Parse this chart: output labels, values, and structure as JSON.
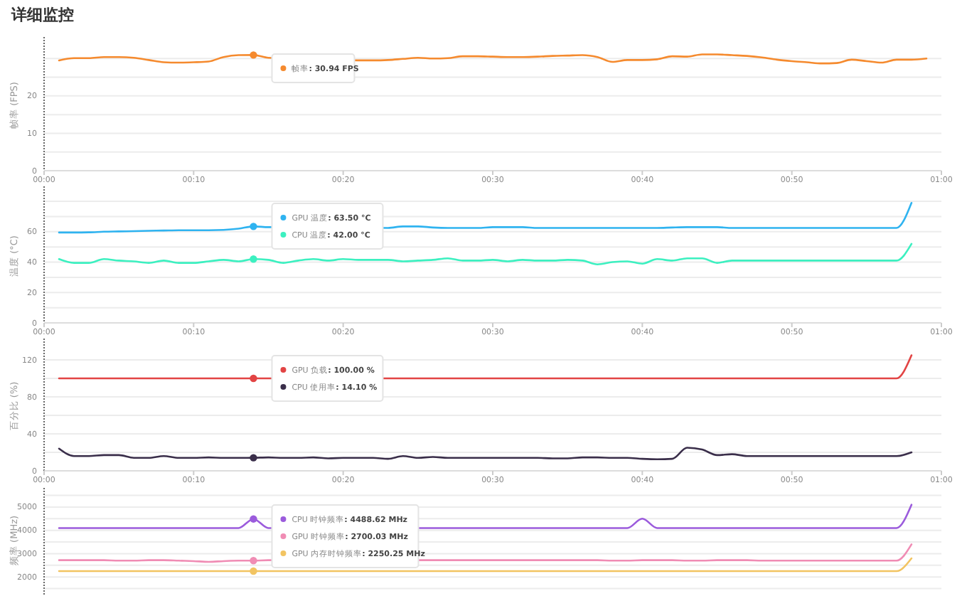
{
  "chart_data": [
    {
      "type": "line",
      "title": "详细监控",
      "ylabel": "帧率 (FPS)",
      "legend": "top",
      "annotations": [
        ": 30.94 FPS"
      ],
      "xlim": [
        0,
        60
      ],
      "xticks": [
        {
          "value": 0,
          "label": "00:00"
        },
        {
          "value": 10,
          "label": "00:10"
        },
        {
          "value": 20,
          "label": "00:20"
        },
        {
          "value": 30,
          "label": "00:30"
        },
        {
          "value": 40,
          "label": "00:40"
        },
        {
          "value": 50,
          "label": "00:50"
        },
        {
          "value": 60,
          "label": "01:00"
        }
      ],
      "ylim": [
        0,
        35
      ],
      "yticks": [
        0,
        {
          "value": 5,
          "label": null
        },
        10,
        {
          "value": 15,
          "label": null
        },
        20,
        {
          "value": 25,
          "label": null
        },
        {
          "value": 30,
          "label": null
        }
      ],
      "grid": "y",
      "x": [
        1,
        2,
        3,
        4,
        5,
        6,
        7,
        8,
        9,
        10,
        11,
        12,
        13,
        14,
        15,
        21,
        22,
        23,
        24,
        25,
        26,
        27,
        28,
        29,
        30,
        31,
        32,
        33,
        34,
        35,
        36,
        37,
        38,
        39,
        40,
        41,
        42,
        43,
        44,
        45,
        46,
        47,
        48,
        49,
        50,
        51,
        52,
        53,
        54,
        55,
        56,
        57,
        58,
        59
      ],
      "series": [
        {
          "name": "帧率",
          "color": "#f58a2e",
          "values": [
            29.5,
            30.1,
            30.1,
            30.4,
            30.4,
            30.2,
            29.6,
            29.0,
            28.9,
            29.0,
            29.2,
            30.4,
            30.9,
            30.94,
            30.2,
            29.5,
            29.5,
            29.6,
            29.9,
            30.2,
            30.0,
            30.1,
            30.6,
            30.6,
            30.5,
            30.4,
            30.4,
            30.5,
            30.7,
            30.8,
            30.9,
            30.4,
            29.1,
            29.6,
            29.6,
            29.8,
            30.6,
            30.5,
            31.1,
            31.1,
            30.9,
            30.7,
            30.3,
            29.7,
            29.3,
            29.0,
            28.7,
            28.8,
            29.7,
            29.3,
            28.9,
            29.7,
            29.7,
            30.0
          ]
        },
        {
          "type": "scatter",
          "color": "#f58a2e",
          "x": [
            14
          ],
          "values": [
            30.94
          ]
        }
      ]
    },
    {
      "type": "line",
      "ylabel": "温度 (°C)",
      "legend": "top",
      "annotations": [
        ": 63.50 °C",
        ": 42.00 °C"
      ],
      "xlim": [
        0,
        60
      ],
      "xticks": [
        {
          "value": 0,
          "label": "00:00"
        },
        {
          "value": 10,
          "label": "00:10"
        },
        {
          "value": 20,
          "label": "00:20"
        },
        {
          "value": 30,
          "label": "00:30"
        },
        {
          "value": 40,
          "label": "00:40"
        },
        {
          "value": 50,
          "label": "00:50"
        },
        {
          "value": 60,
          "label": "01:00"
        }
      ],
      "ylim": [
        0,
        88
      ],
      "yticks": [
        0,
        {
          "value": 10,
          "label": null
        },
        20,
        {
          "value": 30,
          "label": null
        },
        40,
        {
          "value": 50,
          "label": null
        },
        60,
        {
          "value": 70,
          "label": null
        },
        {
          "value": 80,
          "label": null
        }
      ],
      "grid": "y",
      "x": [
        1,
        2,
        3,
        4,
        5,
        6,
        7,
        8,
        9,
        10,
        11,
        12,
        13,
        14,
        15,
        16,
        17,
        18,
        19,
        20,
        21,
        22,
        23,
        24,
        25,
        26,
        27,
        28,
        29,
        30,
        31,
        32,
        33,
        34,
        35,
        36,
        37,
        38,
        39,
        40,
        41,
        42,
        43,
        44,
        45,
        46,
        47,
        48,
        49,
        50,
        51,
        52,
        53,
        54,
        55,
        56,
        57,
        58
      ],
      "series": [
        {
          "name": "GPU 温度",
          "color": "#2fb3f0",
          "x": [
            1,
            2,
            3,
            4,
            5,
            6,
            7,
            8,
            9,
            10,
            11,
            12,
            13,
            14,
            15,
            23,
            24,
            25,
            26,
            27,
            28,
            29,
            30,
            31,
            32,
            33,
            34,
            35,
            36,
            37,
            38,
            39,
            40,
            41,
            42,
            43,
            44,
            45,
            46,
            47,
            48,
            49,
            50,
            51,
            52,
            53,
            54,
            55,
            56,
            57,
            58
          ],
          "values": [
            59.5,
            59.5,
            59.6,
            60,
            60.2,
            60.4,
            60.6,
            60.8,
            61,
            61,
            61,
            61.2,
            62,
            63.5,
            63,
            62.5,
            63.5,
            63.5,
            62.8,
            62.5,
            62.5,
            62.5,
            63,
            63,
            63,
            62.5,
            62.5,
            62.5,
            62.5,
            62.5,
            62.5,
            62.5,
            62.5,
            62.5,
            62.8,
            63,
            63,
            63,
            62.5,
            62.5,
            62.5,
            62.5,
            62.5,
            62.5,
            62.5,
            62.5,
            62.5,
            62.5,
            62.5,
            62.5,
            79
          ]
        },
        {
          "name": "CPU 温度",
          "color": "#3cf0c0",
          "values": [
            42,
            39.5,
            39.5,
            42,
            41,
            40.5,
            39.5,
            41,
            39.5,
            39.5,
            40.5,
            41.5,
            40.5,
            42,
            41.5,
            39.5,
            41,
            42,
            41,
            42,
            41.5,
            41.5,
            41.5,
            40.5,
            41,
            41.5,
            42.5,
            41,
            41,
            41.5,
            40.5,
            41.5,
            41,
            41,
            41.5,
            41,
            38.5,
            40,
            40.5,
            39,
            42,
            41,
            42.5,
            42.5,
            39.5,
            41,
            41,
            41,
            41,
            41,
            41,
            41,
            41,
            41,
            41,
            41,
            41,
            52
          ]
        },
        {
          "type": "scatter",
          "color": "#2fb3f0",
          "x": [
            14
          ],
          "values": [
            63.5
          ]
        },
        {
          "type": "scatter",
          "color": "#3cf0c0",
          "x": [
            14
          ],
          "values": [
            42
          ]
        }
      ]
    },
    {
      "type": "line",
      "ylabel": "百分比 (%)",
      "legend": "top",
      "annotations": [
        ": 100.00 %",
        ": 14.10 %"
      ],
      "xlim": [
        0,
        60
      ],
      "xticks": [
        {
          "value": 0,
          "label": "00:00"
        },
        {
          "value": 10,
          "label": "00:10"
        },
        {
          "value": 20,
          "label": "00:20"
        },
        {
          "value": 30,
          "label": "00:30"
        },
        {
          "value": 40,
          "label": "00:40"
        },
        {
          "value": 50,
          "label": "00:50"
        },
        {
          "value": 60,
          "label": "01:00"
        }
      ],
      "ylim": [
        0,
        140
      ],
      "yticks": [
        0,
        {
          "value": 20,
          "label": null
        },
        40,
        {
          "value": 60,
          "label": null
        },
        80,
        {
          "value": 100,
          "label": null
        },
        120
      ],
      "grid": "y",
      "x": [
        1,
        2,
        3,
        4,
        5,
        6,
        7,
        8,
        9,
        10,
        11,
        12,
        13,
        14,
        15,
        16,
        17,
        18,
        19,
        20,
        21,
        22,
        23,
        24,
        25,
        26,
        27,
        28,
        29,
        30,
        31,
        32,
        33,
        34,
        35,
        36,
        37,
        38,
        39,
        40,
        41,
        42,
        43,
        44,
        45,
        46,
        47,
        48,
        49,
        50,
        51,
        52,
        53,
        54,
        55,
        56,
        57,
        58
      ],
      "series": [
        {
          "name": "GPU 负载",
          "color": "#e24444",
          "x": [
            1,
            2,
            3,
            4,
            5,
            6,
            7,
            8,
            9,
            10,
            11,
            12,
            13,
            14,
            15,
            23,
            24,
            25,
            26,
            27,
            28,
            29,
            30,
            31,
            32,
            33,
            34,
            35,
            36,
            37,
            38,
            39,
            40,
            41,
            42,
            43,
            44,
            45,
            46,
            47,
            48,
            49,
            50,
            51,
            52,
            53,
            54,
            55,
            56,
            57,
            58
          ],
          "values": [
            100,
            100,
            100,
            100,
            100,
            100,
            100,
            100,
            100,
            100,
            100,
            100,
            100,
            100,
            100,
            100,
            100,
            100,
            100,
            100,
            100,
            100,
            100,
            100,
            100,
            100,
            100,
            100,
            100,
            100,
            100,
            100,
            100,
            100,
            100,
            100,
            100,
            100,
            100,
            100,
            100,
            100,
            100,
            100,
            100,
            100,
            100,
            100,
            100,
            100,
            125
          ]
        },
        {
          "name": "CPU 使用率",
          "color": "#3a2e4a",
          "values": [
            24,
            16,
            16,
            17,
            17,
            14,
            14,
            16,
            14,
            14,
            14.5,
            14,
            14,
            14.1,
            14.5,
            14,
            14,
            14.5,
            13.5,
            14,
            14,
            14,
            13,
            16,
            14,
            15,
            14,
            14,
            14,
            14,
            14,
            14,
            14,
            13.5,
            13.5,
            14.5,
            14.5,
            14,
            14,
            13,
            12.5,
            13,
            25,
            23,
            17,
            18,
            16,
            16,
            16,
            16,
            16,
            16,
            16,
            16,
            16,
            16,
            16,
            20
          ]
        },
        {
          "type": "scatter",
          "color": "#e24444",
          "x": [
            14
          ],
          "values": [
            100
          ]
        },
        {
          "type": "scatter",
          "color": "#3a2e4a",
          "x": [
            14
          ],
          "values": [
            14.1
          ]
        }
      ]
    },
    {
      "type": "line",
      "ylabel": "频率 (MHz)",
      "legend": "top",
      "annotations": [
        ": 4488.62 MHz",
        ": 2700.03 MHz",
        ": 2250.25 MHz"
      ],
      "tick_labels": "y",
      "xlim": [
        0,
        60
      ],
      "ylim": [
        1000,
        5700
      ],
      "yticks": [
        {
          "value": 1500,
          "label": null
        },
        2000,
        {
          "value": 2500,
          "label": null
        },
        3000,
        {
          "value": 3500,
          "label": null
        },
        4000,
        {
          "value": 4500,
          "label": null
        },
        5000,
        {
          "value": 5500,
          "label": null
        }
      ],
      "grid": "y",
      "x": [
        1,
        2,
        3,
        4,
        5,
        6,
        7,
        8,
        9,
        10,
        11,
        12,
        13,
        14,
        15,
        16,
        17,
        18,
        19,
        20,
        21,
        22,
        23,
        24,
        25,
        26,
        27,
        28,
        29,
        30,
        31,
        32,
        33,
        34,
        35,
        36,
        37,
        38,
        39,
        40,
        41,
        42,
        43,
        44,
        45,
        46,
        47,
        48,
        49,
        50,
        51,
        52,
        53,
        54,
        55,
        56,
        57,
        58
      ],
      "series": [
        {
          "name": "CPU 时钟频率",
          "color": "#9b5bdc",
          "x": [
            1,
            2,
            3,
            4,
            5,
            6,
            7,
            8,
            9,
            10,
            11,
            12,
            13,
            14,
            15,
            26,
            27,
            28,
            29,
            30,
            31,
            32,
            33,
            34,
            35,
            36,
            37,
            38,
            39,
            40,
            41,
            42,
            43,
            44,
            45,
            46,
            47,
            48,
            49,
            50,
            51,
            52,
            53,
            54,
            55,
            56,
            57,
            58
          ],
          "values": [
            4100,
            4100,
            4100,
            4100,
            4100,
            4100,
            4100,
            4100,
            4100,
            4100,
            4100,
            4100,
            4100,
            4488.62,
            4100,
            4100,
            4100,
            4100,
            4100,
            4100,
            4100,
            4100,
            4100,
            4100,
            4100,
            4100,
            4100,
            4100,
            4100,
            4500,
            4100,
            4100,
            4100,
            4100,
            4100,
            4100,
            4100,
            4100,
            4100,
            4100,
            4100,
            4100,
            4100,
            4100,
            4100,
            4100,
            4100,
            5100
          ]
        },
        {
          "name": "GPU 时钟频率",
          "color": "#f08cb4",
          "x": [
            1,
            2,
            3,
            4,
            5,
            6,
            7,
            8,
            9,
            10,
            11,
            12,
            13,
            14,
            15,
            26,
            27,
            28,
            29,
            30,
            31,
            32,
            33,
            34,
            35,
            36,
            37,
            38,
            39,
            40,
            41,
            42,
            43,
            44,
            45,
            46,
            47,
            48,
            49,
            50,
            51,
            52,
            53,
            54,
            55,
            56,
            57,
            58
          ],
          "values": [
            2720,
            2720,
            2720,
            2720,
            2700,
            2700,
            2720,
            2720,
            2700,
            2680,
            2650,
            2680,
            2700,
            2700.03,
            2720,
            2720,
            2720,
            2720,
            2720,
            2720,
            2720,
            2720,
            2720,
            2720,
            2720,
            2720,
            2720,
            2700,
            2700,
            2720,
            2720,
            2720,
            2700,
            2700,
            2720,
            2720,
            2720,
            2700,
            2700,
            2700,
            2700,
            2700,
            2700,
            2700,
            2700,
            2700,
            2700,
            3400
          ]
        },
        {
          "name": "GPU 内存时钟频率",
          "color": "#f2c462",
          "values": [
            2250,
            2250,
            2250,
            2250,
            2250,
            2250,
            2250,
            2250,
            2250,
            2250,
            2250,
            2250,
            2250,
            2250.25,
            2250,
            2250,
            2250,
            2250,
            2250,
            2250,
            2250,
            2250,
            2250,
            2250,
            2250,
            2250,
            2250,
            2250,
            2250,
            2250,
            2250,
            2250,
            2250,
            2250,
            2250,
            2250,
            2250,
            2250,
            2250,
            2250,
            2250,
            2250,
            2250,
            2250,
            2250,
            2250,
            2250,
            2250,
            2250,
            2250,
            2250,
            2250,
            2250,
            2250,
            2250,
            2250,
            2250,
            2800
          ]
        },
        {
          "type": "scatter",
          "color": "#9b5bdc",
          "x": [
            14
          ],
          "values": [
            4488.62
          ]
        },
        {
          "type": "scatter",
          "color": "#f08cb4",
          "x": [
            14
          ],
          "values": [
            2700.03
          ]
        },
        {
          "type": "scatter",
          "color": "#f2c462",
          "x": [
            14
          ],
          "values": [
            2250.25
          ]
        }
      ]
    }
  ]
}
